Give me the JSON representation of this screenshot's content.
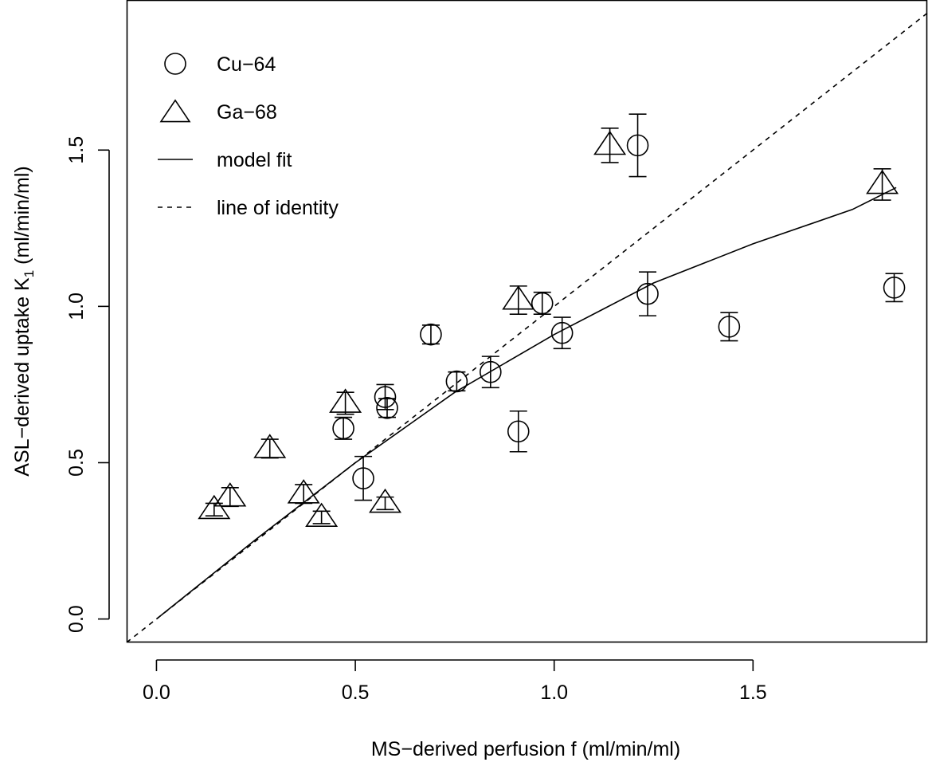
{
  "chart_data": {
    "type": "scatter",
    "xlabel": "MS−derived perfusion f (ml/min/ml)",
    "ylabel": {
      "prefix": "ASL−derived uptake K",
      "subscript": "1",
      "suffix": " (ml/min/ml)"
    },
    "xlim": [
      -0.075,
      1.94
    ],
    "ylim": [
      -0.075,
      1.98
    ],
    "x_ticks": [
      {
        "value": 0.0,
        "label": "0.0"
      },
      {
        "value": 0.5,
        "label": "0.5"
      },
      {
        "value": 1.0,
        "label": "1.0"
      },
      {
        "value": 1.5,
        "label": "1.5"
      }
    ],
    "y_ticks": [
      {
        "value": 0.0,
        "label": "0.0"
      },
      {
        "value": 0.5,
        "label": "0.5"
      },
      {
        "value": 1.0,
        "label": "1.0"
      },
      {
        "value": 1.5,
        "label": "1.5"
      }
    ],
    "grid": false,
    "legend_position": "top-left",
    "series": [
      {
        "name": "Cu−64",
        "marker": "circle",
        "points": [
          {
            "x": 0.47,
            "y": 0.61,
            "err": 0.035
          },
          {
            "x": 0.52,
            "y": 0.45,
            "err": 0.07
          },
          {
            "x": 0.575,
            "y": 0.71,
            "err": 0.04
          },
          {
            "x": 0.58,
            "y": 0.675,
            "err": 0.03
          },
          {
            "x": 0.69,
            "y": 0.91,
            "err": 0.03
          },
          {
            "x": 0.755,
            "y": 0.76,
            "err": 0.03
          },
          {
            "x": 0.84,
            "y": 0.79,
            "err": 0.05
          },
          {
            "x": 0.91,
            "y": 0.6,
            "err": 0.065
          },
          {
            "x": 0.97,
            "y": 1.01,
            "err": 0.035
          },
          {
            "x": 1.02,
            "y": 0.915,
            "err": 0.05
          },
          {
            "x": 1.21,
            "y": 1.515,
            "err": 0.1
          },
          {
            "x": 1.235,
            "y": 1.04,
            "err": 0.07
          },
          {
            "x": 1.44,
            "y": 0.935,
            "err": 0.045
          },
          {
            "x": 1.855,
            "y": 1.06,
            "err": 0.045
          }
        ]
      },
      {
        "name": "Ga−68",
        "marker": "triangle",
        "points": [
          {
            "x": 0.145,
            "y": 0.35,
            "err": 0.02
          },
          {
            "x": 0.185,
            "y": 0.39,
            "err": 0.03
          },
          {
            "x": 0.285,
            "y": 0.545,
            "err": 0.03
          },
          {
            "x": 0.37,
            "y": 0.4,
            "err": 0.03
          },
          {
            "x": 0.415,
            "y": 0.325,
            "err": 0.02
          },
          {
            "x": 0.475,
            "y": 0.69,
            "err": 0.035
          },
          {
            "x": 0.575,
            "y": 0.37,
            "err": 0.02
          },
          {
            "x": 0.91,
            "y": 1.02,
            "err": 0.045
          },
          {
            "x": 1.14,
            "y": 1.515,
            "err": 0.055
          },
          {
            "x": 1.825,
            "y": 1.39,
            "err": 0.05
          }
        ]
      }
    ],
    "lines": [
      {
        "name": "model fit",
        "style": "solid",
        "points": [
          {
            "x": 0.0,
            "y": 0.0
          },
          {
            "x": 0.25,
            "y": 0.255
          },
          {
            "x": 0.5,
            "y": 0.5
          },
          {
            "x": 0.75,
            "y": 0.725
          },
          {
            "x": 1.0,
            "y": 0.91
          },
          {
            "x": 1.25,
            "y": 1.075
          },
          {
            "x": 1.5,
            "y": 1.2
          },
          {
            "x": 1.75,
            "y": 1.31
          },
          {
            "x": 1.86,
            "y": 1.38
          }
        ]
      },
      {
        "name": "line of identity",
        "style": "dashed",
        "points": [
          {
            "x": -0.075,
            "y": -0.075
          },
          {
            "x": 1.94,
            "y": 1.94
          }
        ]
      }
    ],
    "legend": [
      {
        "label": "Cu−64",
        "symbol": "circle"
      },
      {
        "label": "Ga−68",
        "symbol": "triangle"
      },
      {
        "label": "model fit",
        "symbol": "solid-line"
      },
      {
        "label": "line of identity",
        "symbol": "dashed-line"
      }
    ],
    "colors": {
      "ink": "#000000",
      "background": "#ffffff"
    }
  }
}
